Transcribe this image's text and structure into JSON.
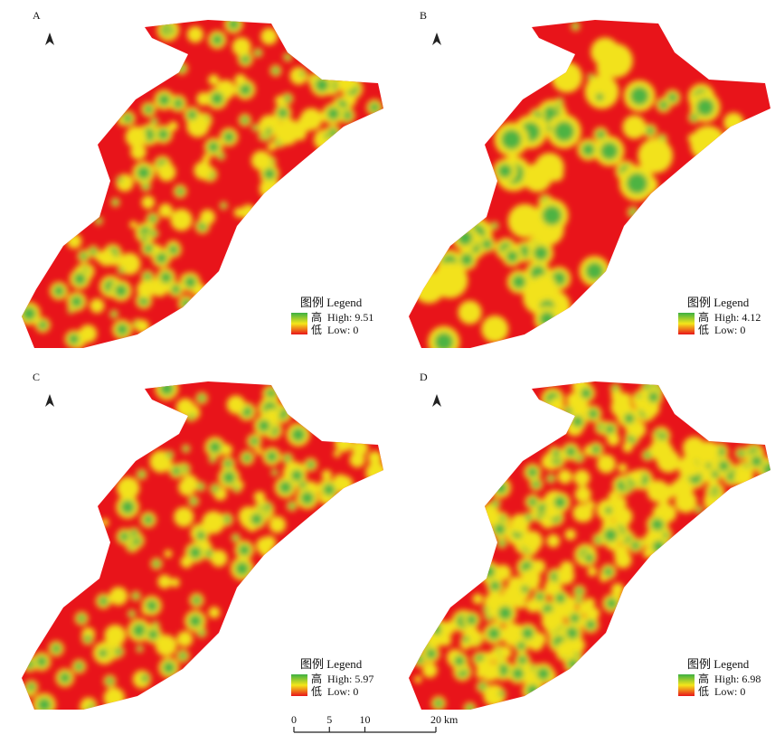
{
  "panels": [
    {
      "label": "A",
      "legend": {
        "title": "图例 Legend",
        "high_char": "高",
        "high": "High: 9.51",
        "low_char": "低",
        "low": "Low: 0"
      }
    },
    {
      "label": "B",
      "legend": {
        "title": "图例 Legend",
        "high_char": "高",
        "high": "High: 4.12",
        "low_char": "低",
        "low": "Low: 0"
      }
    },
    {
      "label": "C",
      "legend": {
        "title": "图例 Legend",
        "high_char": "高",
        "high": "High: 5.97",
        "low_char": "低",
        "low": "Low: 0"
      }
    },
    {
      "label": "D",
      "legend": {
        "title": "图例 Legend",
        "high_char": "高",
        "high": "High: 6.98",
        "low_char": "低",
        "low": "Low: 0"
      }
    }
  ],
  "scale_bar": {
    "ticks": [
      0,
      5,
      10,
      20
    ],
    "unit": "km"
  }
}
